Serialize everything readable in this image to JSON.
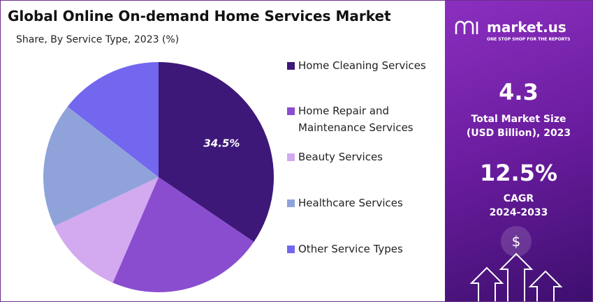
{
  "chart_data": {
    "type": "pie",
    "title": "Global Online On-demand Home Services Market",
    "subtitle": "Share, By Service Type, 2023 (%)",
    "categories": [
      "Home Cleaning Services",
      "Home Repair and Maintenance Services",
      "Beauty Services",
      "Healthcare Services",
      "Other Service Types"
    ],
    "values": [
      34.5,
      22,
      11.5,
      17.5,
      14.5
    ],
    "value_labels": [
      "34.5%",
      null,
      null,
      null,
      null
    ],
    "colors": [
      "#3d1878",
      "#8a4dd0",
      "#d3a9ef",
      "#8fa3da",
      "#7367ef"
    ]
  },
  "panel": {
    "brand": "market.us",
    "tagline": "ONE STOP SHOP FOR THE REPORTS",
    "size_value": "4.3",
    "size_label": "Total Market Size (USD Billion), 2023",
    "cagr_value": "12.5%",
    "cagr_label": "CAGR",
    "cagr_period": "2024-2033"
  }
}
